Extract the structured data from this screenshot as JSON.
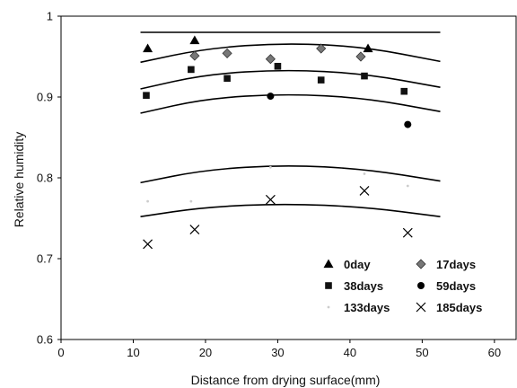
{
  "chart_data": {
    "type": "scatter",
    "title": "",
    "xlabel": "Distance from drying surface(mm)",
    "ylabel": "Relative humidity",
    "xlim": [
      0,
      63
    ],
    "ylim": [
      0.6,
      1.0
    ],
    "xticks": [
      "0",
      "10",
      "20",
      "30",
      "40",
      "50",
      "60"
    ],
    "yticks": [
      "0.6",
      "0.7",
      "0.8",
      "0.9",
      "1"
    ],
    "grid": false,
    "legend_placement": "bottom-right",
    "series": [
      {
        "name": "0day",
        "marker": "triangle",
        "color": "#000000",
        "points": [
          [
            12,
            0.96
          ],
          [
            18.5,
            0.97
          ],
          [
            42.5,
            0.96
          ]
        ]
      },
      {
        "name": "17days",
        "marker": "diamond",
        "color": "#777777",
        "points": [
          [
            18.5,
            0.951
          ],
          [
            23,
            0.954
          ],
          [
            29,
            0.947
          ],
          [
            36,
            0.96
          ],
          [
            41.5,
            0.95
          ]
        ]
      },
      {
        "name": "38days",
        "marker": "square",
        "color": "#111111",
        "points": [
          [
            11.8,
            0.902
          ],
          [
            18,
            0.934
          ],
          [
            23,
            0.923
          ],
          [
            30,
            0.938
          ],
          [
            36,
            0.921
          ],
          [
            42,
            0.926
          ],
          [
            47.5,
            0.907
          ]
        ]
      },
      {
        "name": "59days",
        "marker": "circle",
        "color": "#000000",
        "points": [
          [
            29,
            0.901
          ],
          [
            48,
            0.866
          ]
        ]
      },
      {
        "name": "133days",
        "marker": "dot",
        "color": "#cccccc",
        "points": [
          [
            12,
            0.771
          ],
          [
            18,
            0.771
          ],
          [
            29,
            0.813
          ],
          [
            42,
            0.805
          ],
          [
            48,
            0.79
          ]
        ]
      },
      {
        "name": "185days",
        "marker": "x",
        "color": "#000000",
        "points": [
          [
            12,
            0.718
          ],
          [
            18.5,
            0.736
          ],
          [
            29,
            0.773
          ],
          [
            42,
            0.784
          ],
          [
            48,
            0.732
          ]
        ]
      }
    ],
    "fitted_curves": [
      {
        "points": [
          [
            11,
            0.98
          ],
          [
            52.5,
            0.98
          ]
        ]
      },
      {
        "points": [
          [
            11,
            0.943
          ],
          [
            20,
            0.96
          ],
          [
            31,
            0.967
          ],
          [
            42,
            0.962
          ],
          [
            52.5,
            0.944
          ]
        ]
      },
      {
        "points": [
          [
            11,
            0.91
          ],
          [
            20,
            0.928
          ],
          [
            31,
            0.934
          ],
          [
            42,
            0.929
          ],
          [
            52.5,
            0.912
          ]
        ]
      },
      {
        "points": [
          [
            11,
            0.88
          ],
          [
            20,
            0.898
          ],
          [
            31,
            0.904
          ],
          [
            42,
            0.899
          ],
          [
            52.5,
            0.882
          ]
        ]
      },
      {
        "points": [
          [
            11,
            0.794
          ],
          [
            20,
            0.81
          ],
          [
            31,
            0.816
          ],
          [
            42,
            0.811
          ],
          [
            52.5,
            0.796
          ]
        ]
      },
      {
        "points": [
          [
            11,
            0.752
          ],
          [
            20,
            0.764
          ],
          [
            31,
            0.768
          ],
          [
            42,
            0.764
          ],
          [
            52.5,
            0.752
          ]
        ]
      }
    ]
  }
}
